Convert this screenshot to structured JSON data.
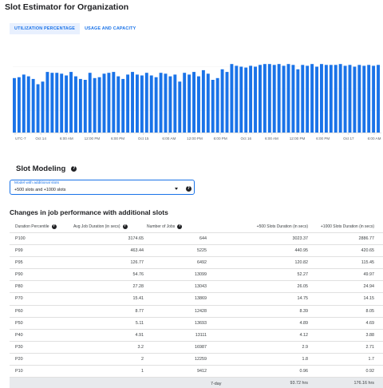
{
  "page": {
    "title": "Slot Estimator for Organization"
  },
  "tabs": [
    {
      "label": "UTILIZATION PERCENTAGE",
      "active": true
    },
    {
      "label": "USAGE AND CAPACITY",
      "active": false
    }
  ],
  "colors": {
    "accent": "#1a73e8",
    "bar": "#1a73e8",
    "tab_active_bg": "#e8f0fe",
    "savings_bg": "#e8eaed"
  },
  "chart_data": {
    "type": "bar",
    "title": "",
    "xlabel": "",
    "ylabel": "",
    "ylim": [
      0,
      100
    ],
    "grid": true,
    "values": [
      62,
      63,
      66,
      64,
      61,
      55,
      58,
      69,
      68,
      68,
      67,
      65,
      69,
      64,
      61,
      60,
      68,
      62,
      63,
      67,
      68,
      69,
      64,
      61,
      66,
      69,
      66,
      65,
      68,
      65,
      63,
      68,
      67,
      64,
      66,
      58,
      68,
      66,
      69,
      64,
      71,
      67,
      60,
      62,
      72,
      69,
      78,
      76,
      75,
      74,
      76,
      75,
      77,
      78,
      78,
      77,
      78,
      76,
      78,
      77,
      72,
      77,
      76,
      78,
      75,
      78,
      77,
      77,
      77,
      78,
      76,
      77,
      75,
      77,
      76,
      77,
      76,
      77
    ],
    "x_tick_labels": [
      "UTC-7",
      "Oct 14",
      "6:00 AM",
      "12:00 PM",
      "6:00 PM",
      "Oct 15",
      "6:00 AM",
      "12:00 PM",
      "6:00 PM",
      "Oct 16",
      "6:00 AM",
      "12:00 PM",
      "6:00 PM",
      "Oct 17",
      "6:00 AM"
    ]
  },
  "slot_modeling": {
    "title": "Slot Modeling",
    "select_label": "Model with additional slots",
    "select_value": "+500 slots and +1000 slots"
  },
  "changes": {
    "title": "Changes in job performance with additional slots",
    "headers": {
      "percentile": "Duration Percentile",
      "avg": "Avg Job Duration (in secs)",
      "jobs": "Number of Jobs",
      "plus500": "+500 Slots Duration (in secs)",
      "plus1000": "+1000 Slots Duration (in secs)"
    },
    "rows": [
      {
        "pct": "P100",
        "avg": "3174.65",
        "jobs": "644",
        "p500": "3023.37",
        "p1000": "2886.77"
      },
      {
        "pct": "P99",
        "avg": "463.44",
        "jobs": "5225",
        "p500": "440.95",
        "p1000": "420.65"
      },
      {
        "pct": "P95",
        "avg": "126.77",
        "jobs": "6492",
        "p500": "120.82",
        "p1000": "115.45"
      },
      {
        "pct": "P90",
        "avg": "54.76",
        "jobs": "13099",
        "p500": "52.27",
        "p1000": "49.97"
      },
      {
        "pct": "P80",
        "avg": "27.28",
        "jobs": "13043",
        "p500": "26.05",
        "p1000": "24.94"
      },
      {
        "pct": "P70",
        "avg": "15.41",
        "jobs": "13869",
        "p500": "14.75",
        "p1000": "14.15"
      },
      {
        "pct": "P60",
        "avg": "8.77",
        "jobs": "12428",
        "p500": "8.39",
        "p1000": "8.05"
      },
      {
        "pct": "P50",
        "avg": "5.11",
        "jobs": "13693",
        "p500": "4.89",
        "p1000": "4.69"
      },
      {
        "pct": "P40",
        "avg": "4.91",
        "jobs": "13111",
        "p500": "4.12",
        "p1000": "3.88"
      },
      {
        "pct": "P30",
        "avg": "3.2",
        "jobs": "16987",
        "p500": "2.9",
        "p1000": "2.71"
      },
      {
        "pct": "P20",
        "avg": "2",
        "jobs": "12259",
        "p500": "1.8",
        "p1000": "1.7"
      },
      {
        "pct": "P10",
        "avg": "1",
        "jobs": "9412",
        "p500": "0.96",
        "p1000": "0.92"
      }
    ],
    "savings": {
      "label": "7-day Savings",
      "plus500": "93.72 hrs",
      "plus1000": "176.16 hrs"
    }
  },
  "icons": {
    "help": "help-circle-icon",
    "dropdown": "dropdown-arrow-icon"
  }
}
